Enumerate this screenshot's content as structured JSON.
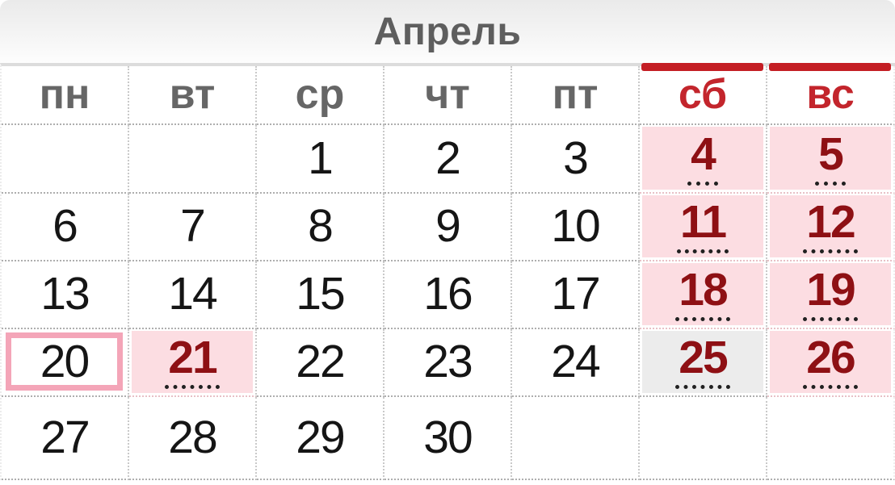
{
  "title": "Апрель",
  "colors": {
    "accent_red": "#c3252c",
    "bar_red": "#c41e24",
    "holiday_red": "#8e1014",
    "pink_bg": "#fcdde2",
    "gray_bg": "#ececec",
    "today_border": "#f4a5b8",
    "title_gray": "#5e5e5e",
    "header_gray": "#666666",
    "day_black": "#151515"
  },
  "weekday_headers": [
    {
      "name": "mon",
      "label": "пн",
      "type": "weekday"
    },
    {
      "name": "tue",
      "label": "вт",
      "type": "weekday"
    },
    {
      "name": "wed",
      "label": "ср",
      "type": "weekday"
    },
    {
      "name": "thu",
      "label": "чт",
      "type": "weekday"
    },
    {
      "name": "fri",
      "label": "пт",
      "type": "weekday"
    },
    {
      "name": "sat",
      "label": "сб",
      "type": "weekend"
    },
    {
      "name": "sun",
      "label": "вс",
      "type": "weekend"
    }
  ],
  "weeks": [
    [
      {
        "day": "",
        "kind": "empty"
      },
      {
        "day": "",
        "kind": "empty"
      },
      {
        "day": "1",
        "kind": "normal"
      },
      {
        "day": "2",
        "kind": "normal"
      },
      {
        "day": "3",
        "kind": "normal"
      },
      {
        "day": "4",
        "kind": "weekend"
      },
      {
        "day": "5",
        "kind": "weekend"
      }
    ],
    [
      {
        "day": "6",
        "kind": "normal"
      },
      {
        "day": "7",
        "kind": "normal"
      },
      {
        "day": "8",
        "kind": "normal"
      },
      {
        "day": "9",
        "kind": "normal"
      },
      {
        "day": "10",
        "kind": "normal"
      },
      {
        "day": "11",
        "kind": "weekend"
      },
      {
        "day": "12",
        "kind": "weekend"
      }
    ],
    [
      {
        "day": "13",
        "kind": "normal"
      },
      {
        "day": "14",
        "kind": "normal"
      },
      {
        "day": "15",
        "kind": "normal"
      },
      {
        "day": "16",
        "kind": "normal"
      },
      {
        "day": "17",
        "kind": "normal"
      },
      {
        "day": "18",
        "kind": "weekend"
      },
      {
        "day": "19",
        "kind": "weekend"
      }
    ],
    [
      {
        "day": "20",
        "kind": "today"
      },
      {
        "day": "21",
        "kind": "holiday"
      },
      {
        "day": "22",
        "kind": "normal"
      },
      {
        "day": "23",
        "kind": "normal"
      },
      {
        "day": "24",
        "kind": "normal"
      },
      {
        "day": "25",
        "kind": "weekend-gray"
      },
      {
        "day": "26",
        "kind": "weekend"
      }
    ],
    [
      {
        "day": "27",
        "kind": "normal"
      },
      {
        "day": "28",
        "kind": "normal"
      },
      {
        "day": "29",
        "kind": "normal"
      },
      {
        "day": "30",
        "kind": "normal"
      },
      {
        "day": "",
        "kind": "empty"
      },
      {
        "day": "",
        "kind": "empty"
      },
      {
        "day": "",
        "kind": "empty"
      }
    ]
  ]
}
